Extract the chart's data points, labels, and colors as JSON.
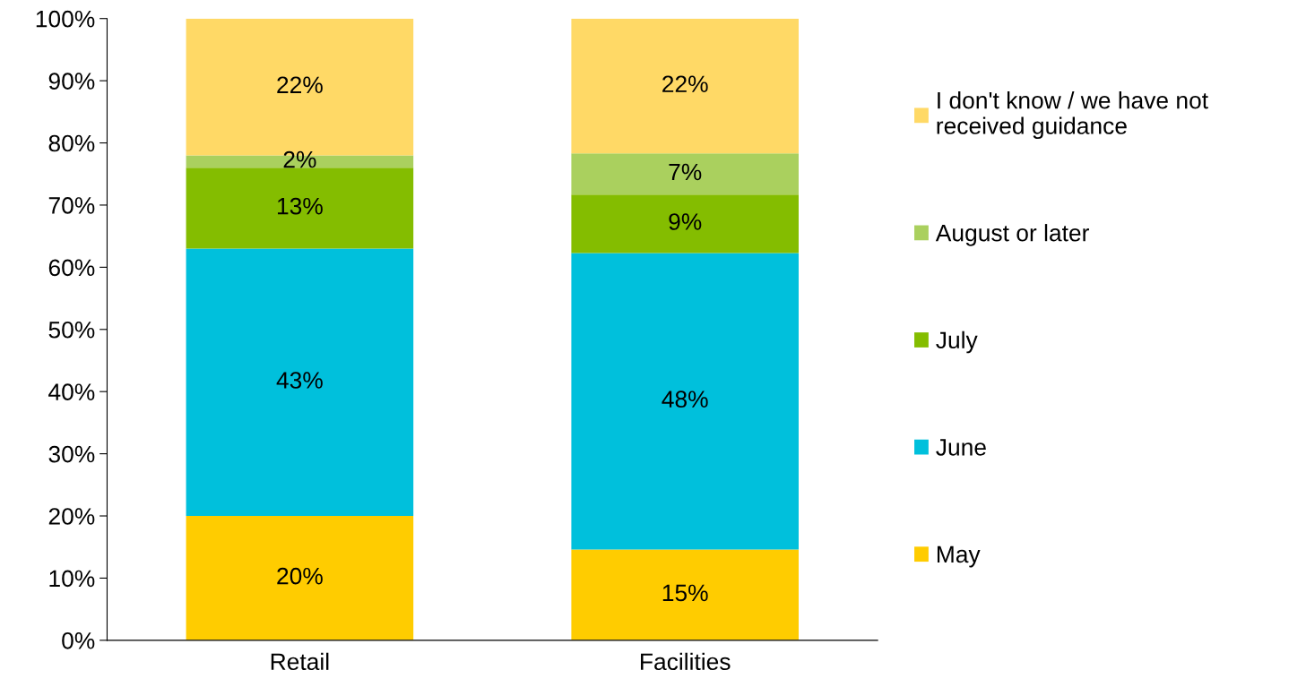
{
  "chart_data": {
    "type": "bar",
    "stacked": true,
    "categories": [
      "Retail",
      "Facilities"
    ],
    "series": [
      {
        "name": "May",
        "color": "#ffcc00",
        "values": [
          20,
          14.6
        ],
        "value_labels": [
          "20%",
          "15%"
        ]
      },
      {
        "name": "June",
        "color": "#00c0dc",
        "values": [
          43,
          47.7
        ],
        "value_labels": [
          "43%",
          "48%"
        ]
      },
      {
        "name": "July",
        "color": "#84bd00",
        "values": [
          13,
          9.4
        ],
        "value_labels": [
          "13%",
          "9%"
        ]
      },
      {
        "name": "August or later",
        "color": "#aad05e",
        "values": [
          2,
          6.6
        ],
        "value_labels": [
          "2%",
          "7%"
        ]
      },
      {
        "name": "I don't know / we have not\nreceived guidance",
        "color": "#ffd966",
        "values": [
          22,
          21.7
        ],
        "value_labels": [
          "22%",
          "22%"
        ]
      }
    ],
    "ylim": [
      0,
      100
    ],
    "yticks": [
      {
        "value": 0,
        "label": "0%"
      },
      {
        "value": 10,
        "label": "10%"
      },
      {
        "value": 20,
        "label": "20%"
      },
      {
        "value": 30,
        "label": "30%"
      },
      {
        "value": 40,
        "label": "40%"
      },
      {
        "value": 50,
        "label": "50%"
      },
      {
        "value": 60,
        "label": "60%"
      },
      {
        "value": 70,
        "label": "70%"
      },
      {
        "value": 80,
        "label": "80%"
      },
      {
        "value": 90,
        "label": "90%"
      },
      {
        "value": 100,
        "label": "100%"
      }
    ],
    "grid": false,
    "legend": "right"
  }
}
